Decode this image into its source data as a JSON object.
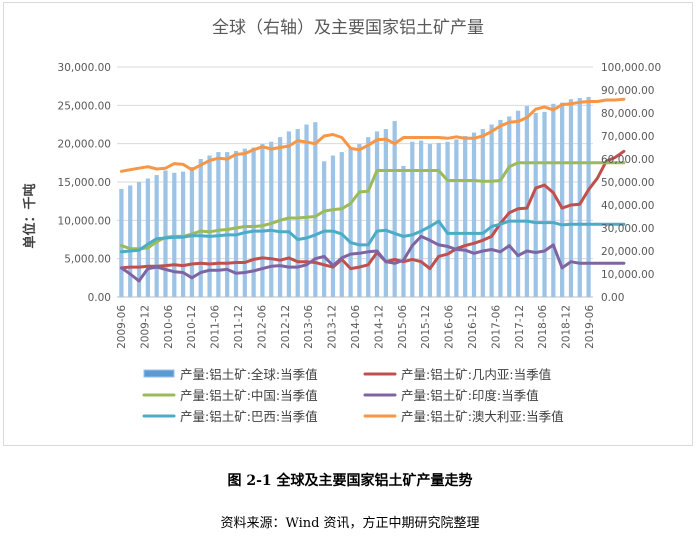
{
  "caption": {
    "figure_title": "图 2-1  全球及主要国家铝土矿产量走势",
    "source": "资料来源：Wind 资讯，方正中期研究院整理"
  },
  "chart_data": {
    "type": "bar",
    "title": "全球（右轴）及主要国家铝土矿产量",
    "ylabel": "单位：千吨",
    "y_left": {
      "min": 0,
      "max": 30000,
      "ticks": [
        "0.00",
        "5,000.00",
        "10,000.00",
        "15,000.00",
        "20,000.00",
        "25,000.00",
        "30,000.00"
      ]
    },
    "y_right": {
      "min": 0,
      "max": 100000,
      "ticks": [
        "0.00",
        "10,000.00",
        "20,000.00",
        "30,000.00",
        "40,000.00",
        "50,000.00",
        "60,000.00",
        "70,000.00",
        "80,000.00",
        "90,000.00",
        "100,000.00"
      ]
    },
    "x_tick_labels": [
      "2009-06",
      "2009-12",
      "2010-06",
      "2010-12",
      "2011-06",
      "2011-12",
      "2012-06",
      "2012-12",
      "2013-06",
      "2013-12",
      "2014-06",
      "2014-12",
      "2015-06",
      "2015-12",
      "2016-06",
      "2016-12",
      "2017-06",
      "2017-12",
      "2018-06",
      "2018-12",
      "2019-06"
    ],
    "grid": true,
    "legend_position": "bottom",
    "colors": {
      "global": "#9dc3e6",
      "guinea": "#c0504d",
      "china": "#9bbb59",
      "india": "#8064a2",
      "brazil": "#4bacc6",
      "australia": "#f79646"
    },
    "series": [
      {
        "key": "global",
        "name": "产量:铝土矿:全球:当季值",
        "type": "bar",
        "axis": "right",
        "values": [
          47000,
          48500,
          50000,
          51500,
          53000,
          55000,
          54000,
          54500,
          56500,
          60000,
          61500,
          63000,
          63000,
          63500,
          64500,
          65000,
          66500,
          67500,
          69500,
          72000,
          73000,
          75000,
          76000,
          59000,
          61500,
          63000,
          64500,
          66500,
          69500,
          72000,
          73000,
          76500,
          57000,
          67500,
          68000,
          66500,
          67000,
          67500,
          68500,
          70000,
          71500,
          73000,
          75000,
          77000,
          78500,
          81000,
          83000,
          80000,
          80500,
          84000,
          84500,
          86000,
          86500,
          87000
        ]
      },
      {
        "key": "guinea",
        "name": "产量:铝土矿:几内亚:当季值",
        "type": "line",
        "axis": "left",
        "values": [
          3800,
          3900,
          3900,
          4000,
          4000,
          4100,
          4200,
          4100,
          4300,
          4400,
          4300,
          4400,
          4400,
          4500,
          4500,
          4900,
          5100,
          5000,
          4800,
          5100,
          4600,
          4600,
          4500,
          4200,
          3900,
          4900,
          3700,
          3900,
          4200,
          5800,
          4600,
          4900,
          4600,
          4900,
          4600,
          3700,
          5300,
          5600,
          6300,
          6700,
          7000,
          7400,
          7900,
          9600,
          11000,
          11500,
          11600,
          14200,
          14600,
          13600,
          11600,
          12000,
          12100,
          14000,
          15500,
          17700,
          18200,
          19000
        ]
      },
      {
        "key": "china",
        "name": "产量:铝土矿:中国:当季值",
        "type": "line",
        "axis": "left",
        "values": [
          6700,
          6300,
          6300,
          6400,
          7200,
          7800,
          7900,
          7900,
          8200,
          8600,
          8500,
          8700,
          8800,
          9000,
          9200,
          9200,
          9300,
          9600,
          10000,
          10300,
          10300,
          10400,
          10500,
          11200,
          11400,
          11500,
          12200,
          13700,
          13800,
          16500,
          16500,
          16500,
          16500,
          16500,
          16500,
          16500,
          16500,
          15200,
          15200,
          15200,
          15200,
          15100,
          15100,
          15200,
          17000,
          17500,
          17500,
          17500,
          17500,
          17500,
          17500,
          17500,
          17500,
          17500,
          17500,
          17500,
          17500,
          17500
        ]
      },
      {
        "key": "india",
        "name": "产量:铝土矿:印度:当季值",
        "type": "line",
        "axis": "left",
        "values": [
          3800,
          3000,
          2100,
          3700,
          3900,
          3600,
          3300,
          3200,
          2500,
          3200,
          3500,
          3500,
          3600,
          3100,
          3200,
          3400,
          3700,
          4000,
          4100,
          3900,
          3900,
          4200,
          5000,
          5300,
          4100,
          5100,
          5600,
          5700,
          5900,
          6000,
          4600,
          4400,
          4800,
          6700,
          7900,
          7400,
          6800,
          6600,
          6200,
          6100,
          5700,
          6000,
          6200,
          5900,
          6700,
          5400,
          6000,
          5800,
          6000,
          6800,
          3800,
          4600,
          4400,
          4400,
          4400,
          4400,
          4400,
          4400
        ]
      },
      {
        "key": "brazil",
        "name": "产量:铝土矿:巴西:当季值",
        "type": "line",
        "axis": "left",
        "values": [
          5900,
          6000,
          6100,
          6900,
          7600,
          7700,
          7800,
          7800,
          8000,
          8000,
          7900,
          8000,
          8100,
          8100,
          8400,
          8600,
          8600,
          8700,
          8500,
          8500,
          7500,
          7700,
          8100,
          8600,
          8600,
          8200,
          7100,
          6800,
          6800,
          8600,
          8700,
          8300,
          7900,
          8100,
          8600,
          9200,
          9900,
          8300,
          8300,
          8300,
          8300,
          8300,
          9200,
          9500,
          9900,
          9900,
          9900,
          9700,
          9700,
          9700,
          9400,
          9500,
          9500,
          9500,
          9500,
          9500,
          9500,
          9500
        ]
      },
      {
        "key": "australia",
        "name": "产量:铝土矿:澳大利亚:当季值",
        "type": "line",
        "axis": "left",
        "values": [
          16400,
          16600,
          16800,
          17000,
          16700,
          16800,
          17400,
          17300,
          16600,
          17200,
          17800,
          18100,
          18000,
          18600,
          18700,
          19200,
          19600,
          19300,
          19500,
          19700,
          20400,
          20200,
          20000,
          21000,
          21200,
          20800,
          19400,
          19200,
          19800,
          20500,
          20600,
          20000,
          20800,
          20800,
          20800,
          20800,
          20800,
          20700,
          20900,
          20700,
          20700,
          21000,
          21600,
          22300,
          22800,
          22900,
          23400,
          24500,
          24800,
          24400,
          25100,
          25200,
          25400,
          25500,
          25500,
          25700,
          25700,
          25800
        ]
      }
    ]
  }
}
